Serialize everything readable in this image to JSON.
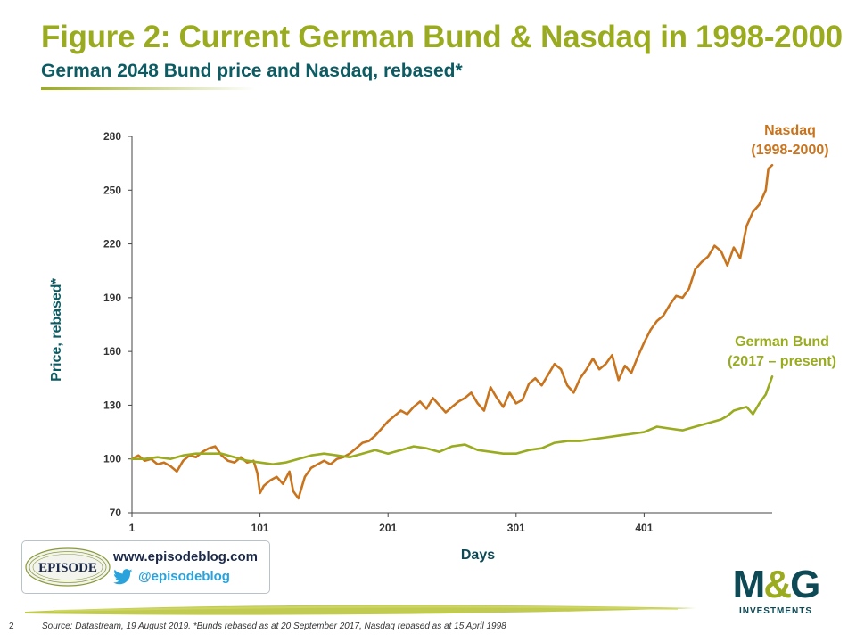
{
  "header": {
    "title": "Figure 2: Current German Bund & Nasdaq in 1998-2000",
    "subtitle": "German 2048 Bund price and Nasdaq, rebased*"
  },
  "footer": {
    "page_number": "2",
    "source": "Source: Datastream, 19 August 2019. *Bunds rebased as at 20 September 2017, Nasdaq rebased as at 15 April 1998"
  },
  "blog": {
    "logo_text": "EPISODE",
    "url": "www.episodeblog.com",
    "twitter": "@episodeblog"
  },
  "brand": {
    "logo_main": "M&G",
    "logo_sub": "INVESTMENTS"
  },
  "colors": {
    "title": "#9aab1f",
    "subtitle": "#0d5c63",
    "nasdaq": "#c8741e",
    "bund": "#9aab1f"
  },
  "chart_data": {
    "type": "line",
    "xlabel": "Days",
    "ylabel": "Price, rebased*",
    "xlim": [
      1,
      501
    ],
    "ylim": [
      70,
      280
    ],
    "x_ticks": [
      1,
      101,
      201,
      301,
      401
    ],
    "y_ticks": [
      70,
      100,
      130,
      160,
      190,
      220,
      250,
      280
    ],
    "grid": false,
    "series": [
      {
        "name": "Nasdaq (1998-2000)",
        "label_lines": [
          "Nasdaq",
          "(1998-2000)"
        ],
        "color": "#c8741e",
        "x": [
          1,
          6,
          11,
          16,
          21,
          26,
          31,
          36,
          41,
          46,
          51,
          56,
          61,
          66,
          71,
          76,
          81,
          86,
          91,
          96,
          99,
          101,
          104,
          109,
          114,
          119,
          124,
          127,
          131,
          136,
          141,
          146,
          151,
          156,
          161,
          166,
          171,
          176,
          181,
          186,
          191,
          196,
          201,
          206,
          211,
          216,
          221,
          226,
          231,
          236,
          241,
          246,
          251,
          256,
          261,
          266,
          271,
          276,
          281,
          286,
          291,
          296,
          301,
          306,
          311,
          316,
          321,
          326,
          331,
          336,
          341,
          346,
          351,
          356,
          361,
          366,
          371,
          376,
          381,
          386,
          391,
          396,
          401,
          406,
          411,
          416,
          421,
          426,
          431,
          436,
          441,
          446,
          451,
          456,
          461,
          466,
          471,
          476,
          481,
          486,
          491,
          496,
          498,
          501
        ],
        "y": [
          100,
          102,
          99,
          100,
          97,
          98,
          96,
          93,
          99,
          102,
          101,
          104,
          106,
          107,
          102,
          99,
          98,
          101,
          98,
          99,
          92,
          81,
          85,
          88,
          90,
          86,
          93,
          82,
          78,
          90,
          95,
          97,
          99,
          97,
          100,
          101,
          103,
          106,
          109,
          110,
          113,
          117,
          121,
          124,
          127,
          125,
          129,
          132,
          128,
          134,
          130,
          126,
          129,
          132,
          134,
          137,
          131,
          127,
          140,
          134,
          129,
          137,
          131,
          133,
          142,
          145,
          141,
          147,
          153,
          150,
          141,
          137,
          145,
          150,
          156,
          150,
          153,
          158,
          144,
          152,
          148,
          157,
          165,
          172,
          177,
          180,
          186,
          191,
          190,
          195,
          206,
          210,
          213,
          219,
          216,
          208,
          218,
          212,
          230,
          238,
          242,
          250,
          262,
          264
        ]
      },
      {
        "name": "German Bund (2017 – present)",
        "label_lines": [
          "German Bund",
          "(2017 – present)"
        ],
        "color": "#9aab1f",
        "x": [
          1,
          11,
          21,
          31,
          41,
          51,
          61,
          71,
          81,
          91,
          101,
          111,
          121,
          131,
          141,
          151,
          161,
          171,
          181,
          191,
          201,
          211,
          221,
          231,
          241,
          251,
          261,
          271,
          281,
          291,
          301,
          311,
          321,
          331,
          341,
          351,
          361,
          371,
          381,
          391,
          401,
          411,
          421,
          431,
          441,
          451,
          461,
          466,
          471,
          476,
          481,
          486,
          491,
          496,
          501
        ],
        "y": [
          100,
          100,
          101,
          100,
          102,
          103,
          103,
          103,
          101,
          99,
          98,
          97,
          98,
          100,
          102,
          103,
          102,
          101,
          103,
          105,
          103,
          105,
          107,
          106,
          104,
          107,
          108,
          105,
          104,
          103,
          103,
          105,
          106,
          109,
          110,
          110,
          111,
          112,
          113,
          114,
          115,
          118,
          117,
          116,
          118,
          120,
          122,
          124,
          127,
          128,
          129,
          125,
          131,
          136,
          146
        ]
      }
    ]
  }
}
